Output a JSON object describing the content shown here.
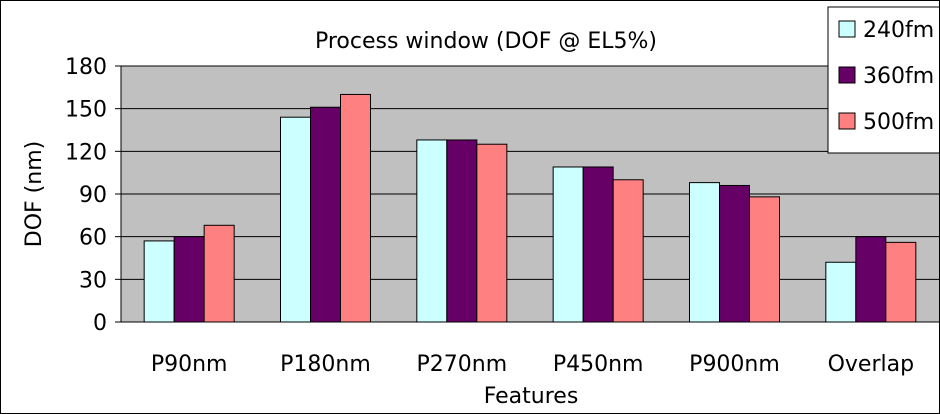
{
  "chart_data": {
    "type": "bar",
    "title": "Process window (DOF @ EL5%)",
    "xlabel": "Features",
    "ylabel": "DOF (nm)",
    "ylim": [
      0,
      180
    ],
    "yticks": [
      0,
      30,
      60,
      90,
      120,
      150,
      180
    ],
    "categories": [
      "P90nm",
      "P180nm",
      "P270nm",
      "P450nm",
      "P900nm",
      "Overlap"
    ],
    "series": [
      {
        "name": "240fm",
        "color": "#ccffff",
        "values": [
          57,
          144,
          128,
          109,
          98,
          42
        ]
      },
      {
        "name": "360fm",
        "color": "#660066",
        "values": [
          60,
          151,
          128,
          109,
          96,
          60
        ]
      },
      {
        "name": "500fm",
        "color": "#ff8080",
        "values": [
          68,
          160,
          125,
          100,
          88,
          56
        ]
      }
    ],
    "plot_background": "#c0c0c0",
    "grid": true,
    "legend_position": "top-right"
  }
}
